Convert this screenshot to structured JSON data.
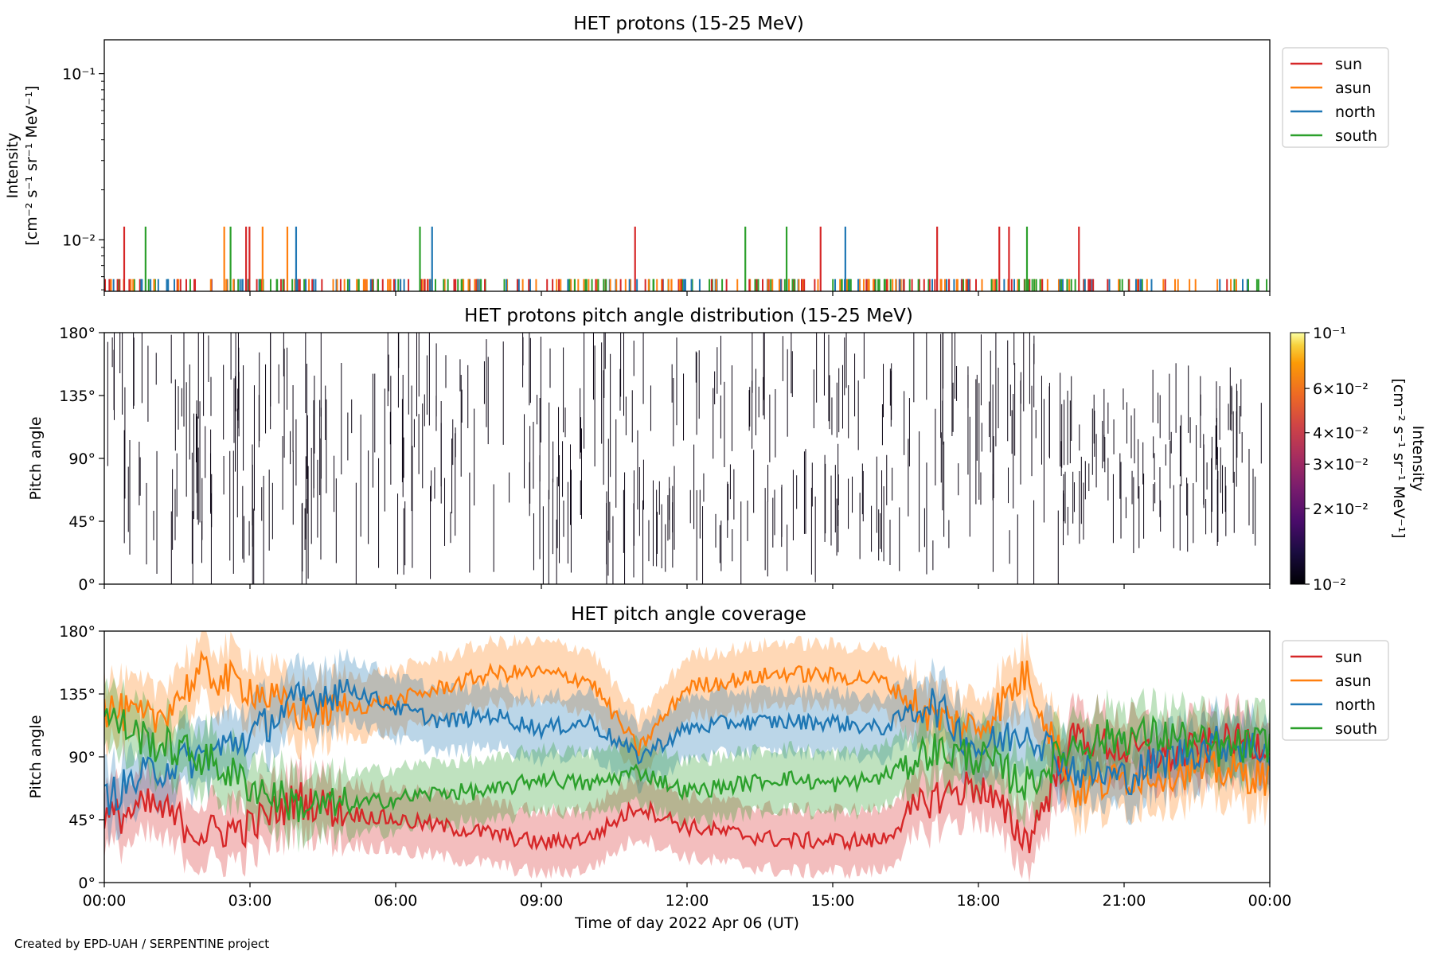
{
  "figure": {
    "xlabel": "Time of day 2022 Apr 06 (UT)",
    "credit": "Created by EPD-UAH / SERPENTINE project",
    "xticks": [
      "00:00",
      "03:00",
      "06:00",
      "09:00",
      "12:00",
      "15:00",
      "18:00",
      "21:00",
      "00:00"
    ]
  },
  "colors": {
    "sun": "#d62728",
    "asun": "#ff7f0e",
    "north": "#1f77b4",
    "south": "#2ca02c"
  },
  "legend": [
    "sun",
    "asun",
    "north",
    "south"
  ],
  "chart_data": [
    {
      "id": "intensity",
      "type": "line",
      "title": "HET protons (15-25 MeV)",
      "ylabel_line1": "Intensity",
      "ylabel_line2": "[cm⁻² s⁻¹ sr⁻¹ MeV⁻¹]",
      "yscale": "log",
      "ylim": [
        0.0049,
        0.16
      ],
      "yticks": [
        {
          "value": 0.01,
          "label": "10⁻²"
        },
        {
          "value": 0.1,
          "label": "10⁻¹"
        }
      ],
      "xlim_hours": [
        0,
        24
      ],
      "baseline_level": 0.0058,
      "baseline_note": "many short single-count spikes near 0.0058 across the whole day",
      "series": [
        {
          "name": "sun",
          "spike_level": 0.012,
          "spike_hours": [
            0.41,
            2.92,
            2.99,
            10.93,
            14.75,
            17.15,
            18.43,
            18.63,
            20.07
          ]
        },
        {
          "name": "asun",
          "spike_hours": [
            2.47,
            3.26,
            3.77
          ],
          "spike_level": 0.012
        },
        {
          "name": "north",
          "spike_hours": [
            3.95,
            6.75,
            15.26
          ],
          "spike_level": 0.012
        },
        {
          "name": "south",
          "spike_hours": [
            0.85,
            2.6,
            6.5,
            13.2,
            14.05,
            19.0
          ],
          "spike_level": 0.012
        }
      ],
      "legend_position": "outside-right-top"
    },
    {
      "id": "pad",
      "type": "heatmap",
      "title": "HET protons pitch angle distribution (15-25 MeV)",
      "ylabel": "Pitch angle",
      "ylim": [
        0,
        180
      ],
      "yticks": [
        "0°",
        "45°",
        "90°",
        "135°",
        "180°"
      ],
      "colorbar_label_line1": "Intensity",
      "colorbar_label_line2": "[cm⁻² s⁻¹ sr⁻¹ MeV⁻¹]",
      "colorbar_scale": "log",
      "colorbar_range": [
        0.01,
        0.1
      ],
      "colorbar_ticks": [
        {
          "value": 0.01,
          "label": "10⁻²"
        },
        {
          "value": 0.02,
          "label": "2×10⁻²"
        },
        {
          "value": 0.03,
          "label": "3×10⁻²"
        },
        {
          "value": 0.04,
          "label": "4×10⁻²"
        },
        {
          "value": 0.06,
          "label": "6×10⁻²"
        },
        {
          "value": 0.1,
          "label": "10⁻¹"
        }
      ],
      "colormap": "inferno",
      "note": "thin dark vertical segments spanning pitch-angle bins throughout the day"
    },
    {
      "id": "coverage",
      "type": "line",
      "title": "HET pitch angle coverage",
      "ylabel": "Pitch angle",
      "ylim": [
        0,
        180
      ],
      "yticks": [
        "0°",
        "45°",
        "90°",
        "135°",
        "180°"
      ],
      "x": [
        0,
        1,
        2,
        3,
        4,
        5,
        6,
        7,
        8,
        9,
        10,
        11,
        12,
        13,
        14,
        15,
        16,
        17,
        18,
        19,
        20,
        21,
        22,
        23,
        24
      ],
      "band_halfwidth_deg": 22,
      "series": [
        {
          "name": "sun",
          "values": [
            45,
            55,
            35,
            40,
            60,
            50,
            45,
            40,
            35,
            28,
            32,
            55,
            40,
            35,
            30,
            30,
            30,
            60,
            70,
            30,
            105,
            95,
            90,
            100,
            100
          ]
        },
        {
          "name": "asun",
          "values": [
            125,
            115,
            150,
            140,
            120,
            125,
            130,
            140,
            150,
            150,
            145,
            95,
            140,
            145,
            150,
            148,
            145,
            120,
            110,
            150,
            65,
            75,
            80,
            80,
            75
          ]
        },
        {
          "name": "north",
          "values": [
            60,
            80,
            90,
            105,
            130,
            140,
            125,
            115,
            120,
            110,
            115,
            90,
            110,
            115,
            115,
            115,
            110,
            130,
            95,
            110,
            80,
            75,
            90,
            100,
            95
          ]
        },
        {
          "name": "south",
          "values": [
            120,
            100,
            90,
            70,
            55,
            55,
            60,
            65,
            65,
            75,
            70,
            80,
            65,
            70,
            75,
            70,
            75,
            95,
            90,
            70,
            100,
            105,
            105,
            95,
            100
          ]
        }
      ],
      "legend_position": "outside-right-top"
    }
  ]
}
